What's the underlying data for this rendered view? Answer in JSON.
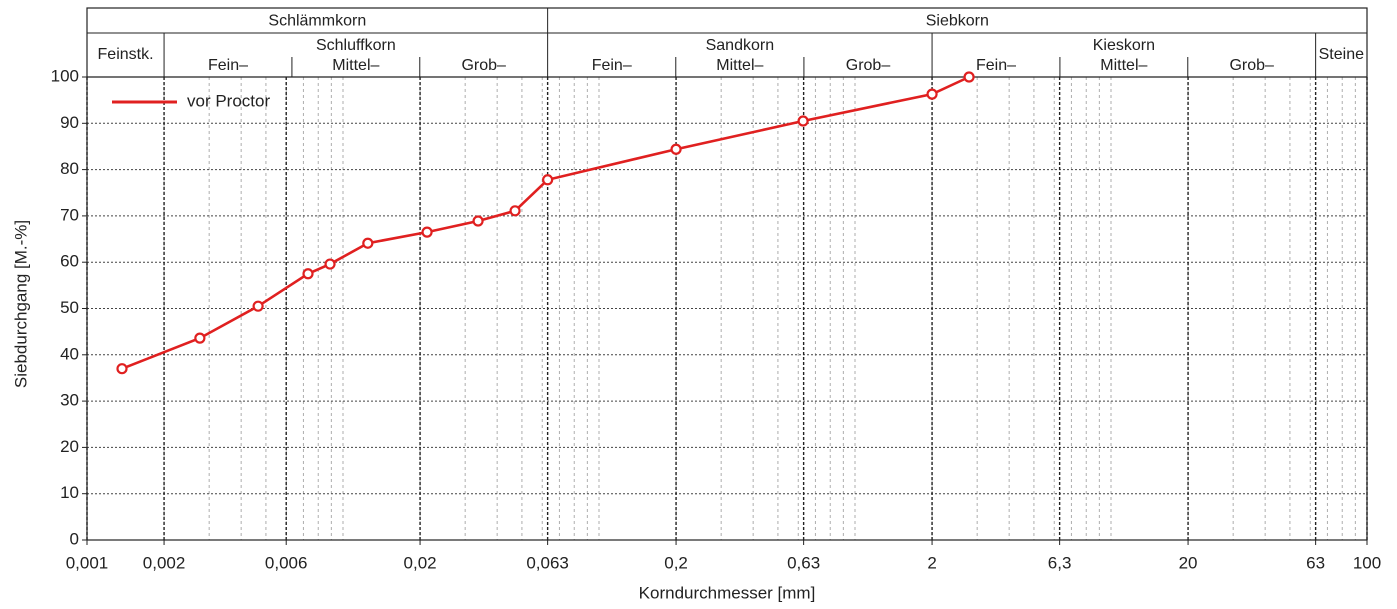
{
  "chart_data": {
    "type": "line",
    "x_label": "Korndurchmesser [mm]",
    "y_label": "Siebdurchgang [M.-%]",
    "log_x": true,
    "grid": true,
    "legend": "upper-left",
    "xlim": [
      0.001,
      100
    ],
    "ylim": [
      0,
      100
    ],
    "xticks": [
      {
        "value": 0.001,
        "label": "0,001"
      },
      {
        "value": 0.002,
        "label": "0,002"
      },
      {
        "value": 0.006,
        "label": "0,006"
      },
      {
        "value": 0.02,
        "label": "0,02"
      },
      {
        "value": 0.063,
        "label": "0,063"
      },
      {
        "value": 0.2,
        "label": "0,2"
      },
      {
        "value": 0.63,
        "label": "0,63"
      },
      2,
      {
        "value": 6.3,
        "label": "6,3"
      },
      20,
      63,
      100
    ],
    "yticks": [
      0,
      10,
      20,
      30,
      40,
      50,
      60,
      70,
      80,
      90,
      100
    ],
    "header": {
      "top": [
        {
          "label": "Schlämmkorn",
          "from": 0.001,
          "to": 0.063
        },
        {
          "label": "Siebkorn",
          "from": 0.063,
          "to": 100
        }
      ],
      "groups": [
        {
          "label": "Feinstk.",
          "from": 0.001,
          "to": 0.002,
          "parts": []
        },
        {
          "label": "Schluffkorn",
          "from": 0.002,
          "to": 0.063,
          "parts": [
            "Fein–",
            "Mittel–",
            "Grob–"
          ]
        },
        {
          "label": "Sandkorn",
          "from": 0.063,
          "to": 2,
          "parts": [
            "Fein–",
            "Mittel–",
            "Grob–"
          ]
        },
        {
          "label": "Kieskorn",
          "from": 2,
          "to": 63,
          "parts": [
            "Fein–",
            "Mittel–",
            "Grob–"
          ]
        },
        {
          "label": "Steine",
          "from": 63,
          "to": 100,
          "parts": []
        }
      ]
    },
    "series": [
      {
        "name": "vor Proctor",
        "color": "#e02020",
        "x": [
          0.00137,
          0.00276,
          0.00466,
          0.0073,
          0.0089,
          0.0125,
          0.0213,
          0.0337,
          0.047,
          0.063,
          0.2,
          0.627,
          2,
          2.79
        ],
        "values": [
          37,
          43.6,
          50.5,
          57.5,
          59.6,
          64.1,
          66.5,
          68.9,
          71.1,
          77.8,
          84.4,
          90.5,
          96.3,
          100
        ]
      }
    ]
  }
}
